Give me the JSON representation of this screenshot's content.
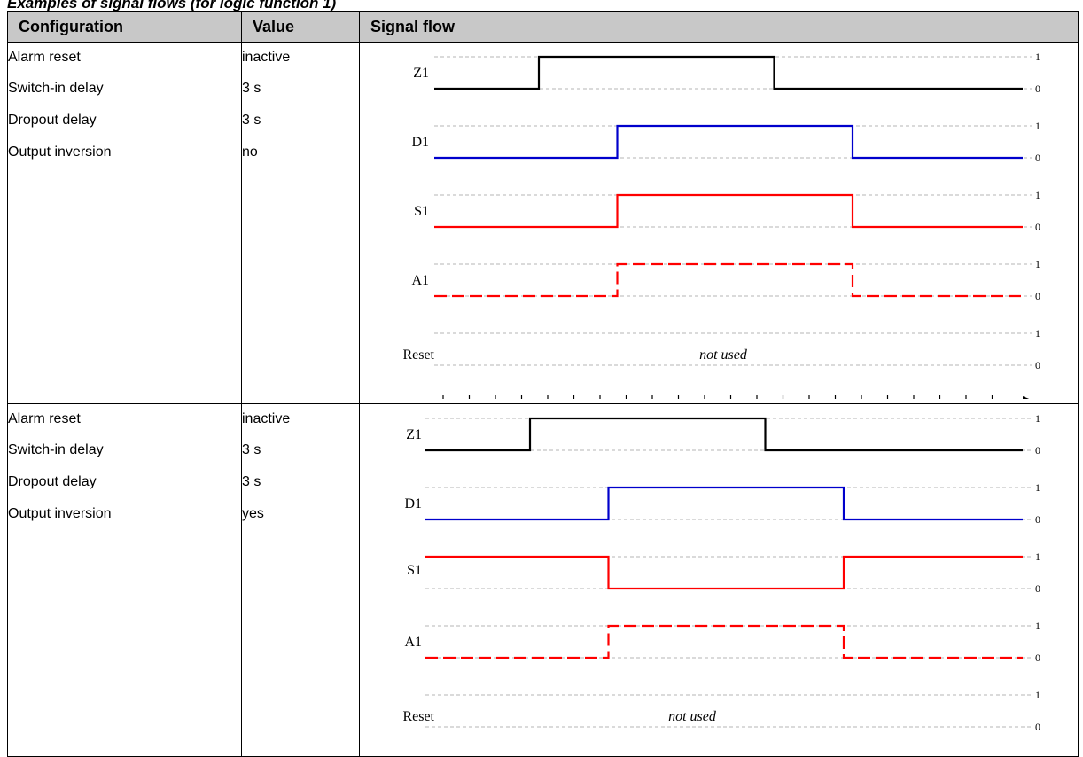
{
  "caption": "Examples of signal flows (for logic function 1)",
  "table": {
    "headers": [
      "Configuration",
      "Value",
      "Signal flow"
    ],
    "rows": [
      {
        "config": [
          {
            "label": "Alarm reset",
            "value": "inactive"
          },
          {
            "label": "Switch-in delay",
            "value": "3 s"
          },
          {
            "label": "Dropout delay",
            "value": "3 s"
          },
          {
            "label": "Output inversion",
            "value": "no"
          }
        ],
        "signals": [
          {
            "name": "Z1",
            "color": "#000000",
            "dashed": false,
            "transitions": [
              4,
              13
            ],
            "initial": 0
          },
          {
            "name": "D1",
            "color": "#0000cc",
            "dashed": false,
            "transitions": [
              7,
              16
            ],
            "initial": 0
          },
          {
            "name": "S1",
            "color": "#ff0000",
            "dashed": false,
            "transitions": [
              7,
              16
            ],
            "initial": 0
          },
          {
            "name": "A1",
            "color": "#ff0000",
            "dashed": true,
            "transitions": [
              7,
              16
            ],
            "initial": 0
          },
          {
            "name": "Reset",
            "note": "not used"
          }
        ]
      },
      {
        "config": [
          {
            "label": "Alarm reset",
            "value": "inactive"
          },
          {
            "label": "Switch-in delay",
            "value": "3 s"
          },
          {
            "label": "Dropout delay",
            "value": "3 s"
          },
          {
            "label": "Output inversion",
            "value": "yes"
          }
        ],
        "signals": [
          {
            "name": "Z1",
            "color": "#000000",
            "dashed": false,
            "transitions": [
              4,
              13
            ],
            "initial": 0
          },
          {
            "name": "D1",
            "color": "#0000cc",
            "dashed": false,
            "transitions": [
              7,
              16
            ],
            "initial": 0
          },
          {
            "name": "S1",
            "color": "#ff0000",
            "dashed": false,
            "transitions": [
              7,
              16
            ],
            "initial": 1
          },
          {
            "name": "A1",
            "color": "#ff0000",
            "dashed": true,
            "transitions": [
              7,
              16
            ],
            "initial": 0
          },
          {
            "name": "Reset",
            "note": "not used"
          }
        ]
      }
    ]
  },
  "level_labels": {
    "high": "1",
    "low": "0"
  },
  "time_axis": {
    "ticks": 22
  }
}
